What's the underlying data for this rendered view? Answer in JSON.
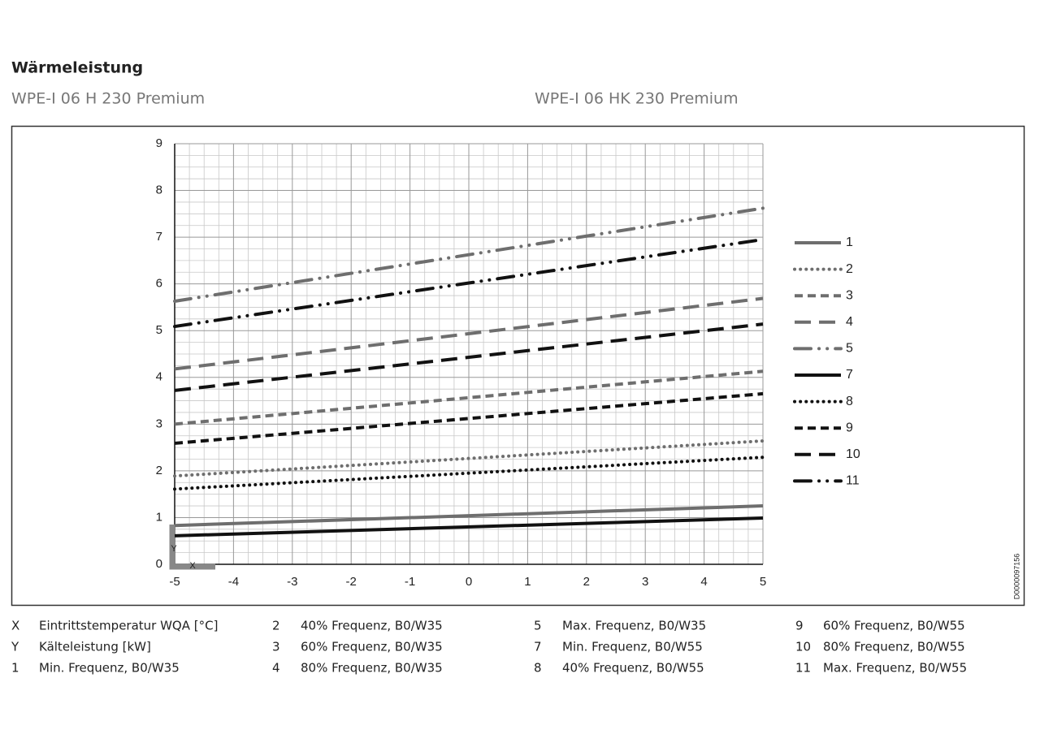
{
  "heading": "Wärmeleistung",
  "subtitles": [
    "WPE-I 06 H 230 Premium",
    "WPE-I 06 HK 230 Premium"
  ],
  "document_id": "D0000097156",
  "chart_data": {
    "type": "line",
    "x": [
      -5,
      5
    ],
    "xlim": [
      -5,
      5
    ],
    "xticks": [
      -5,
      -4,
      -3,
      -2,
      -1,
      0,
      1,
      2,
      3,
      4,
      5
    ],
    "ylim": [
      0,
      9
    ],
    "yticks": [
      0,
      1,
      2,
      3,
      4,
      5,
      6,
      7,
      8,
      9
    ],
    "grid": true,
    "series": [
      {
        "name": "1",
        "color": "#6e6e6e",
        "style": "solid",
        "values": [
          0.83,
          1.25
        ]
      },
      {
        "name": "2",
        "color": "#6e6e6e",
        "style": "dotted",
        "values": [
          1.89,
          2.64
        ]
      },
      {
        "name": "3",
        "color": "#6e6e6e",
        "style": "short-dash",
        "values": [
          3.0,
          4.13
        ]
      },
      {
        "name": "4",
        "color": "#6e6e6e",
        "style": "long-dash",
        "values": [
          4.18,
          5.69
        ]
      },
      {
        "name": "5",
        "color": "#6e6e6e",
        "style": "dash-dot",
        "values": [
          5.63,
          7.62
        ]
      },
      {
        "name": "7",
        "color": "#111111",
        "style": "solid",
        "values": [
          0.61,
          0.99
        ]
      },
      {
        "name": "8",
        "color": "#111111",
        "style": "dotted",
        "values": [
          1.61,
          2.29
        ]
      },
      {
        "name": "9",
        "color": "#111111",
        "style": "short-dash",
        "values": [
          2.59,
          3.65
        ]
      },
      {
        "name": "10",
        "color": "#111111",
        "style": "long-dash",
        "values": [
          3.72,
          5.14
        ]
      },
      {
        "name": "11",
        "color": "#111111",
        "style": "dash-dot",
        "values": [
          5.09,
          6.95
        ]
      }
    ]
  },
  "key": [
    {
      "symbol": "X",
      "text": "Eintrittstemperatur WQA [°C]"
    },
    {
      "symbol": "Y",
      "text": "Kälteleistung [kW]"
    },
    {
      "symbol": "1",
      "text": "Min. Frequenz, B0/W35"
    },
    {
      "symbol": "2",
      "text": "40% Frequenz, B0/W35"
    },
    {
      "symbol": "3",
      "text": "60% Frequenz, B0/W35"
    },
    {
      "symbol": "4",
      "text": "80% Frequenz, B0/W35"
    },
    {
      "symbol": "5",
      "text": "Max. Frequenz, B0/W35"
    },
    {
      "symbol": "7",
      "text": "Min. Frequenz, B0/W55"
    },
    {
      "symbol": "8",
      "text": "40% Frequenz, B0/W55"
    },
    {
      "symbol": "9",
      "text": "60% Frequenz, B0/W55"
    },
    {
      "symbol": "10",
      "text": "80% Frequenz, B0/W55"
    },
    {
      "symbol": "11",
      "text": "Max. Frequenz, B0/W55"
    }
  ]
}
